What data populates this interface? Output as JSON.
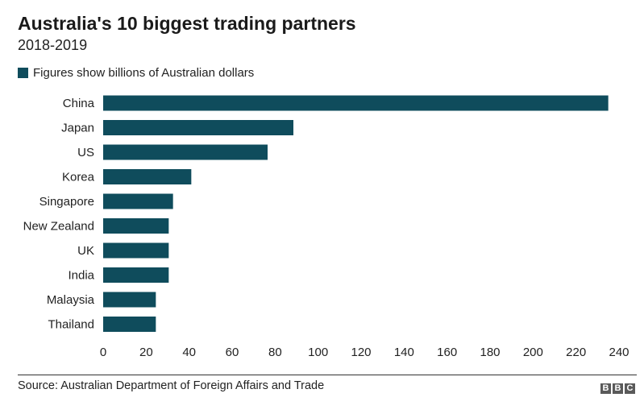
{
  "header": {
    "title": "Australia's 10 biggest trading partners",
    "subtitle": "2018-2019"
  },
  "legend": {
    "label": "Figures show billions of Australian dollars",
    "color": "#0f4c5c"
  },
  "footer": {
    "source": "Source: Australian Department of Foreign Affairs and Trade",
    "logo": [
      "B",
      "B",
      "C"
    ]
  },
  "chart_data": {
    "type": "bar",
    "orientation": "horizontal",
    "title": "Australia's 10 biggest trading partners",
    "subtitle": "2018-2019",
    "categories": [
      "China",
      "Japan",
      "US",
      "Korea",
      "Singapore",
      "New Zealand",
      "UK",
      "India",
      "Malaysia",
      "Thailand"
    ],
    "series": [
      {
        "name": "Figures show billions of Australian dollars",
        "values": [
          235,
          88.5,
          76.5,
          41,
          32.5,
          30.5,
          30.5,
          30.5,
          24.5,
          24.5
        ]
      }
    ],
    "xlim": [
      0,
      240
    ],
    "xticks": [
      0,
      20,
      40,
      60,
      80,
      100,
      120,
      140,
      160,
      180,
      200,
      220,
      240
    ],
    "grid": false,
    "legend_position": "top-left",
    "bar_color": "#0f4c5c"
  }
}
